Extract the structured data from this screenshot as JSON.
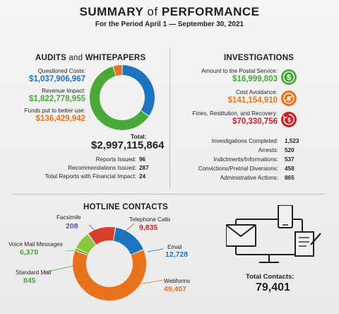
{
  "header": {
    "title_bold_1": "SUMMARY",
    "title_of": "of",
    "title_bold_2": "PERFORMANCE",
    "subtitle": "For the Period April 1 — September 30, 2021"
  },
  "audits": {
    "title_bold": "AUDITS",
    "title_and": "and",
    "title_rest": "WHITEPAPERS",
    "items": [
      {
        "label": "Questioned Costs:",
        "value": "$1,037,906,967",
        "color": "#1e73be"
      },
      {
        "label": "Revenue Impact:",
        "value": "$1,822,778,955",
        "color": "#4aa83a"
      },
      {
        "label": "Funds put to better use:",
        "value": "$136,429,942",
        "color": "#e8731c"
      }
    ],
    "total_label": "Total:",
    "total_value": "$2,997,115,864",
    "stats": [
      {
        "label": "Reports Issued:",
        "value": "96"
      },
      {
        "label": "Recommendations Issued:",
        "value": "287"
      },
      {
        "label": "Total Reports with Financial Impact:",
        "value": "24"
      }
    ]
  },
  "investigations": {
    "title": "INVESTIGATIONS",
    "items": [
      {
        "label": "Amount to the Postal Service:",
        "value": "$16,999,803",
        "color": "#4aa83a",
        "icon": "dollar-icon"
      },
      {
        "label": "Cost Avoidance:",
        "value": "$141,154,910",
        "color": "#e8731c",
        "icon": "cost-avoidance-icon"
      },
      {
        "label": "Fines, Restitution, and Recovery:",
        "value": "$70,330,756",
        "color": "#c8202f",
        "icon": "recovery-icon"
      }
    ],
    "stats": [
      {
        "label": "Investigations Completed:",
        "value": "1,523"
      },
      {
        "label": "Arrests:",
        "value": "520"
      },
      {
        "label": "Indictments/Informations:",
        "value": "537"
      },
      {
        "label": "Convictions/Pretrial Diversions:",
        "value": "458"
      },
      {
        "label": "Administrative Actions:",
        "value": "865"
      }
    ]
  },
  "hotline": {
    "title": "HOTLINE CONTACTS",
    "total_label": "Total Contacts:",
    "total_value": "79,401"
  },
  "chart_data": [
    {
      "type": "pie",
      "donut": true,
      "title": "",
      "categories": [
        "Questioned Costs",
        "Revenue Impact",
        "Funds put to better use"
      ],
      "values": [
        1037906967,
        1822778955,
        136429942
      ],
      "colors": [
        "#1e73be",
        "#4aa83a",
        "#e8731c"
      ]
    },
    {
      "type": "pie",
      "donut": true,
      "title": "",
      "categories": [
        "Telephone Calls",
        "Email",
        "Webforms",
        "Standard Mail",
        "Voice Mail Messages",
        "Facsimile"
      ],
      "values": [
        9835,
        12728,
        49407,
        845,
        6378,
        208
      ],
      "colors": [
        "#d8402c",
        "#1e73be",
        "#e8731c",
        "#4aa83a",
        "#8cc63f",
        "#6a4c9c"
      ]
    }
  ]
}
